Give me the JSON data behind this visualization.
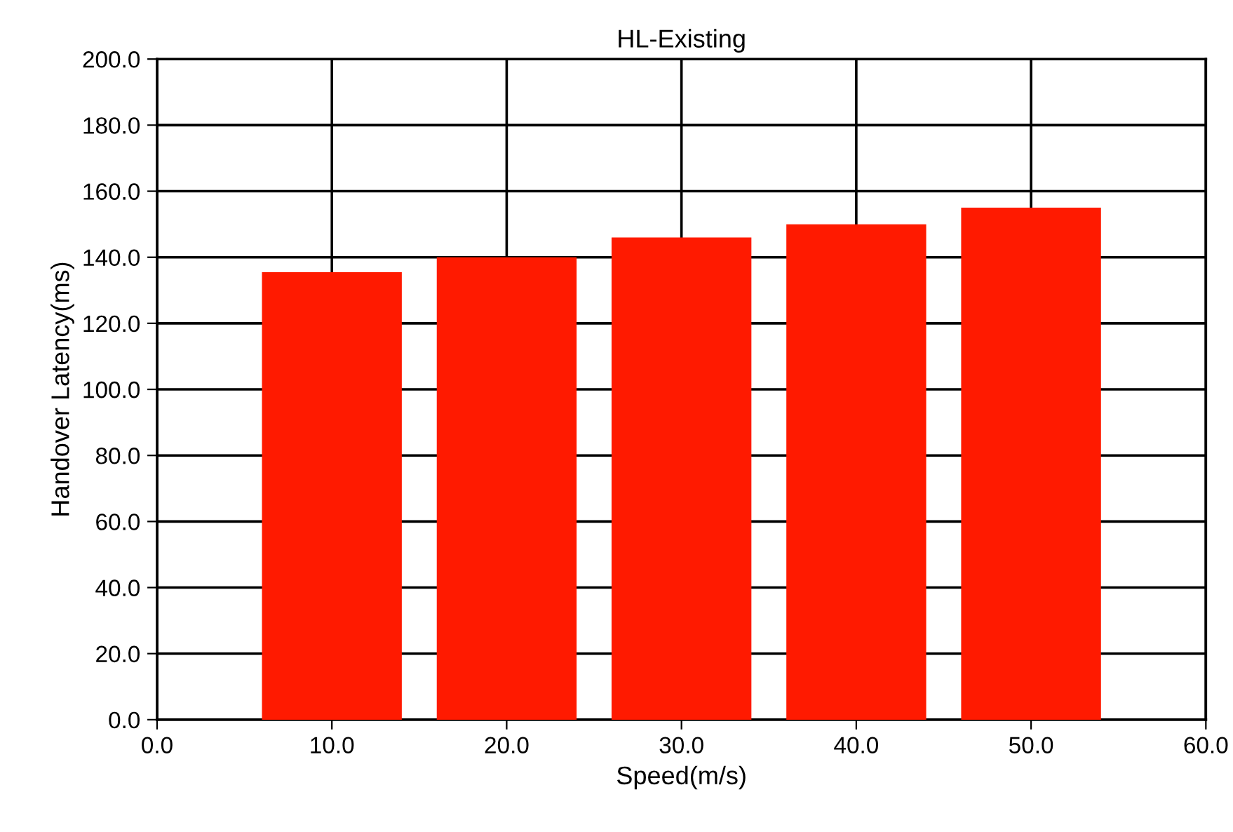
{
  "chart_data": {
    "type": "bar",
    "title": "HL-Existing",
    "xlabel": "Speed(m/s)",
    "ylabel": "Handover Latency(ms)",
    "x": [
      10,
      20,
      30,
      40,
      50
    ],
    "series": [
      {
        "color": "#ff1a00",
        "values": [
          135.5,
          140,
          146,
          150,
          155
        ]
      }
    ],
    "xlim": [
      0,
      60
    ],
    "xticks": [
      {
        "value": 0,
        "label": "0.0"
      },
      {
        "value": 10,
        "label": "10.0"
      },
      {
        "value": 20,
        "label": "20.0"
      },
      {
        "value": 30,
        "label": "30.0"
      },
      {
        "value": 40,
        "label": "40.0"
      },
      {
        "value": 50,
        "label": "50.0"
      },
      {
        "value": 60,
        "label": "60.0"
      }
    ],
    "ylim": [
      0,
      200
    ],
    "yticks": [
      {
        "value": 0,
        "label": "0.0"
      },
      {
        "value": 20,
        "label": "20.0"
      },
      {
        "value": 40,
        "label": "40.0"
      },
      {
        "value": 60,
        "label": "60.0"
      },
      {
        "value": 80,
        "label": "80.0"
      },
      {
        "value": 100,
        "label": "100.0"
      },
      {
        "value": 120,
        "label": "120.0"
      },
      {
        "value": 140,
        "label": "140.0"
      },
      {
        "value": 160,
        "label": "160.0"
      },
      {
        "value": 180,
        "label": "180.0"
      },
      {
        "value": 200,
        "label": "200.0"
      }
    ],
    "grid": true,
    "legend": false
  }
}
